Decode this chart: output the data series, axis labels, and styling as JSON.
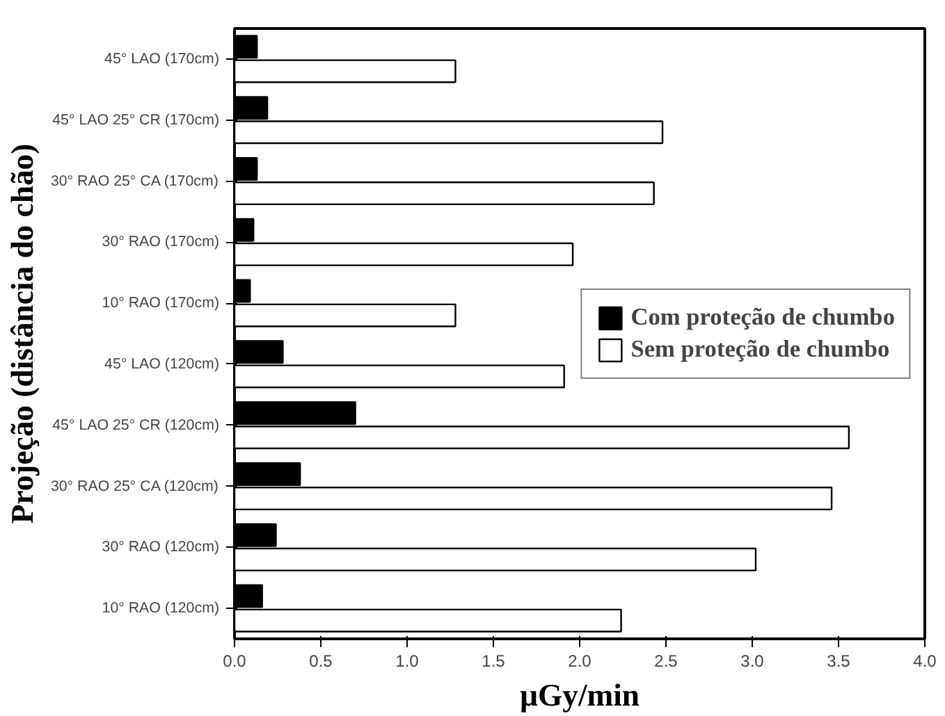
{
  "chart_data": {
    "type": "bar",
    "orientation": "horizontal",
    "xlabel": "µGy/min",
    "ylabel": "Projeção (distância do chão)",
    "categories": [
      "45° LAO (170cm)",
      "45° LAO 25° CR (170cm)",
      "30° RAO 25° CA (170cm)",
      "30° RAO (170cm)",
      "10° RAO (170cm)",
      "45° LAO (120cm)",
      "45° LAO 25° CR (120cm)",
      "30° RAO 25° CA (120cm)",
      "30° RAO (120cm)",
      "10° RAO (120cm)"
    ],
    "series": [
      {
        "name": "Com proteção de chumbo",
        "color": "#000000",
        "values": [
          0.13,
          0.19,
          0.13,
          0.11,
          0.09,
          0.28,
          0.7,
          0.38,
          0.24,
          0.16
        ]
      },
      {
        "name": "Sem proteção de chumbo",
        "color": "#ffffff",
        "values": [
          1.28,
          2.48,
          2.43,
          1.96,
          1.28,
          1.91,
          3.56,
          3.46,
          3.02,
          2.24
        ]
      }
    ],
    "xlim": [
      0,
      4
    ],
    "xticks": [
      {
        "value": 0,
        "label": "0.0"
      },
      {
        "value": 0.5,
        "label": "0.5"
      },
      {
        "value": 1,
        "label": "1.0"
      },
      {
        "value": 1.5,
        "label": "1.5"
      },
      {
        "value": 2,
        "label": "2.0"
      },
      {
        "value": 2.5,
        "label": "2.5"
      },
      {
        "value": 3,
        "label": "3.0"
      },
      {
        "value": 3.5,
        "label": "3.5"
      },
      {
        "value": 4,
        "label": "4.0"
      }
    ],
    "grid": false,
    "legend": "right"
  }
}
